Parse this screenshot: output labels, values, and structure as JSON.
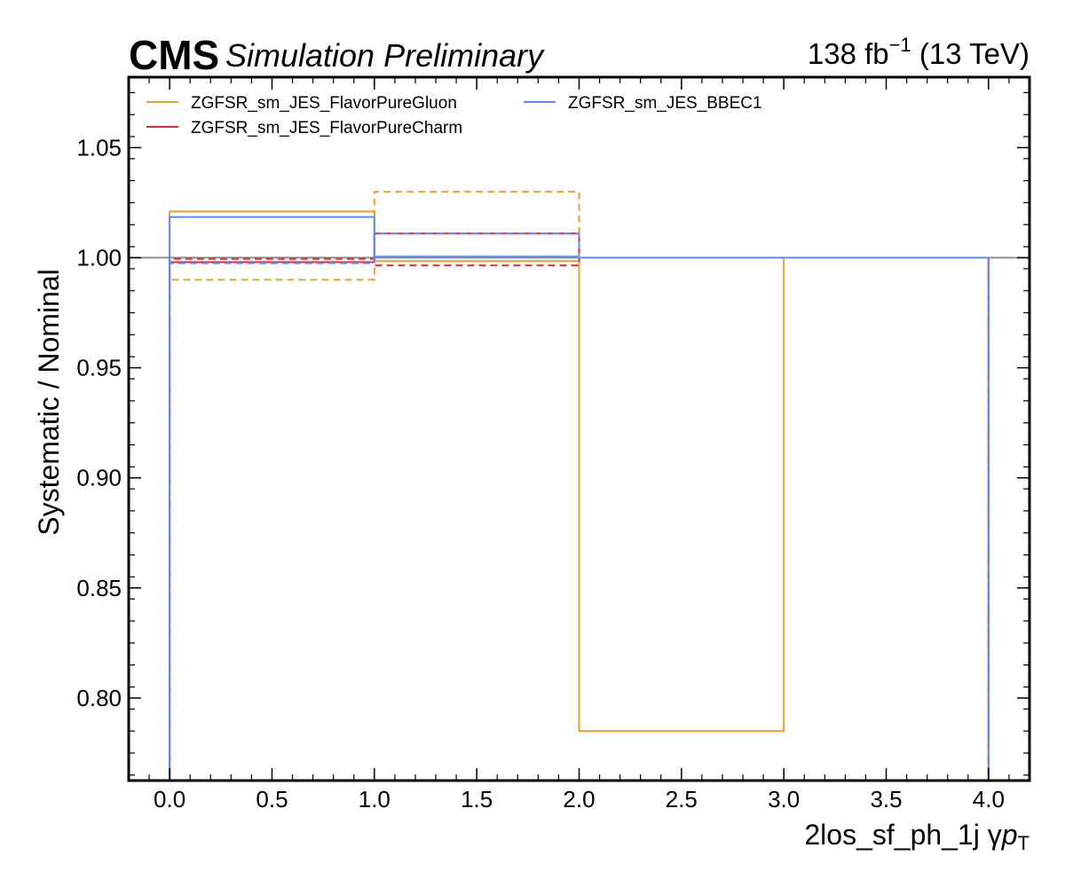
{
  "header": {
    "experiment": "CMS",
    "status": "Simulation Preliminary",
    "lumi_value": "138 fb",
    "lumi_exp": "−1",
    "lumi_energy": "(13 TeV)"
  },
  "chart_data": {
    "type": "line",
    "style": "step-histogram",
    "xlabel_main": "2los_sf_ph_1j   γ",
    "xlabel_p": "p",
    "xlabel_sub": "T",
    "ylabel": "Systematic / Nominal",
    "xlim": [
      -0.2,
      4.2
    ],
    "ylim": [
      0.7625,
      1.082
    ],
    "x_ticks": [
      0.0,
      0.5,
      1.0,
      1.5,
      2.0,
      2.5,
      3.0,
      3.5,
      4.0
    ],
    "x_tick_labels": [
      "0.0",
      "0.5",
      "1.0",
      "1.5",
      "2.0",
      "2.5",
      "3.0",
      "3.5",
      "4.0"
    ],
    "y_ticks": [
      0.8,
      0.85,
      0.9,
      0.95,
      1.0,
      1.05
    ],
    "y_tick_labels": [
      "0.80",
      "0.85",
      "0.90",
      "0.95",
      "1.00",
      "1.05"
    ],
    "bin_edges": [
      0,
      1,
      2,
      3,
      4
    ],
    "reference_line": {
      "y": 1.0,
      "color": "#8c8c8c"
    },
    "legend": {
      "placement": "top-left",
      "columns": 2
    },
    "series": [
      {
        "name": "ZGFSR_sm_JES_FlavorPureGluon",
        "color": "#f0a030",
        "dash": false,
        "values": [
          1.021,
          0.9985,
          0.785,
          1.0
        ]
      },
      {
        "name": "ZGFSR_sm_JES_FlavorPureGluon",
        "color": "#f0a030",
        "dash": true,
        "in_legend": false,
        "values": [
          0.99,
          1.03,
          1.0,
          1.0
        ]
      },
      {
        "name": "ZGFSR_sm_JES_FlavorPureCharm",
        "color": "#e02a36",
        "dash": false,
        "values": [
          0.998,
          1.011,
          1.0,
          1.0
        ]
      },
      {
        "name": "ZGFSR_sm_JES_FlavorPureCharm",
        "color": "#e02a36",
        "dash": true,
        "in_legend": false,
        "values": [
          0.9995,
          0.9965,
          1.0,
          1.0
        ]
      },
      {
        "name": "ZGFSR_sm_JES_BBEC1",
        "color": "#5790fc",
        "dash": false,
        "values": [
          1.0185,
          1.0005,
          1.0,
          1.0
        ]
      },
      {
        "name": "ZGFSR_sm_JES_BBEC1",
        "color": "#5790fc",
        "dash": true,
        "in_legend": false,
        "values": [
          0.9975,
          1.011,
          1.0,
          1.0
        ]
      }
    ]
  }
}
